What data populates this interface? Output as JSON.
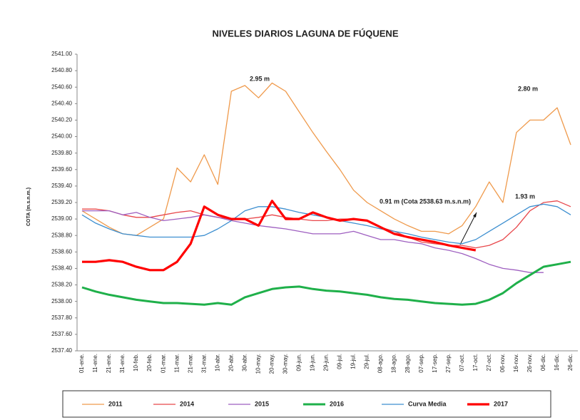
{
  "chart_data": {
    "type": "line",
    "title": "NIVELES DIARIOS LAGUNA DE FÚQUENE",
    "y_label": "COTA (m.s.n.m.)",
    "categories": [
      "01-ene.",
      "11-ene.",
      "21-ene.",
      "31-ene.",
      "10-feb.",
      "20-feb.",
      "01-mar.",
      "11-mar.",
      "21-mar.",
      "31-mar.",
      "10-abr.",
      "20-abr.",
      "30-abr.",
      "10-may.",
      "20-may.",
      "30-may.",
      "09-jun.",
      "19-jun.",
      "29-jun.",
      "09-jul.",
      "19-jul.",
      "29-jul.",
      "08-ago.",
      "18-ago.",
      "28-ago.",
      "07-sep.",
      "17-sep.",
      "27-sep.",
      "07-oct.",
      "17-oct.",
      "27-oct.",
      "06-nov.",
      "16-nov.",
      "26-nov.",
      "06-dic.",
      "16-dic.",
      "26-dic."
    ],
    "ylim": [
      2537.4,
      2541.0
    ],
    "yticks": [
      {
        "value": 2537.4,
        "label": "2537.40"
      },
      {
        "value": 2537.6,
        "label": "2537.60"
      },
      {
        "value": 2537.8,
        "label": "2537.80"
      },
      {
        "value": 2538.0,
        "label": "2538.00"
      },
      {
        "value": 2538.2,
        "label": "2538.20"
      },
      {
        "value": 2538.4,
        "label": "2538.40"
      },
      {
        "value": 2538.6,
        "label": "2538.60"
      },
      {
        "value": 2538.8,
        "label": "2538.80"
      },
      {
        "value": 2539.0,
        "label": "2539.00"
      },
      {
        "value": 2539.2,
        "label": "2539.20"
      },
      {
        "value": 2539.4,
        "label": "2539.40"
      },
      {
        "value": 2539.6,
        "label": "2539.60"
      },
      {
        "value": 2539.8,
        "label": "2539.80"
      },
      {
        "value": 2540.0,
        "label": "2540.00"
      },
      {
        "value": 2540.2,
        "label": "2540.20"
      },
      {
        "value": 2540.4,
        "label": "2540.40"
      },
      {
        "value": 2540.6,
        "label": "2540.60"
      },
      {
        "value": 2540.8,
        "label": "2540.80"
      },
      {
        "value": 2541.0,
        "label": "2541.00"
      }
    ],
    "grid": false,
    "legend": "bottom",
    "series": [
      {
        "name": "2011",
        "color": "#ef9a4c",
        "line_width": 1.3,
        "values": [
          2539.1,
          2539.0,
          2538.9,
          2538.82,
          2538.8,
          2538.9,
          2539.0,
          2539.62,
          2539.45,
          2539.78,
          2539.42,
          2540.55,
          2540.62,
          2540.47,
          2540.65,
          2540.55,
          2540.3,
          2540.05,
          2539.82,
          2539.6,
          2539.35,
          2539.2,
          2539.1,
          2539.0,
          2538.92,
          2538.85,
          2538.85,
          2538.82,
          2538.92,
          2539.15,
          2539.45,
          2539.2,
          2540.05,
          2540.2,
          2540.2,
          2540.35,
          2539.9
        ]
      },
      {
        "name": "2014",
        "color": "#e8474b",
        "line_width": 1.3,
        "values": [
          2539.12,
          2539.12,
          2539.1,
          2539.05,
          2539.02,
          2539.02,
          2539.05,
          2539.08,
          2539.1,
          2539.05,
          2539.02,
          2539.0,
          2539.0,
          2539.02,
          2539.05,
          2539.02,
          2539.0,
          2538.98,
          2538.98,
          2539.0,
          2539.0,
          2538.98,
          2538.9,
          2538.85,
          2538.78,
          2538.72,
          2538.7,
          2538.68,
          2538.68,
          2538.65,
          2538.68,
          2538.75,
          2538.9,
          2539.1,
          2539.2,
          2539.22,
          2539.15
        ]
      },
      {
        "name": "2015",
        "color": "#9e5fc0",
        "line_width": 1.3,
        "values": [
          2539.1,
          2539.1,
          2539.1,
          2539.05,
          2539.08,
          2539.02,
          2538.98,
          2539.0,
          2539.02,
          2539.05,
          2539.02,
          2538.98,
          2538.95,
          2538.92,
          2538.9,
          2538.88,
          2538.85,
          2538.82,
          2538.82,
          2538.82,
          2538.85,
          2538.8,
          2538.75,
          2538.75,
          2538.72,
          2538.7,
          2538.65,
          2538.62,
          2538.58,
          2538.52,
          2538.45,
          2538.4,
          2538.38,
          2538.35,
          2538.35,
          null,
          null
        ]
      },
      {
        "name": "2016",
        "color": "#1fb04a",
        "line_width": 3,
        "values": [
          2538.17,
          2538.12,
          2538.08,
          2538.05,
          2538.02,
          2538.0,
          2537.98,
          2537.98,
          2537.97,
          2537.96,
          2537.98,
          2537.96,
          2538.05,
          2538.1,
          2538.15,
          2538.17,
          2538.18,
          2538.15,
          2538.13,
          2538.12,
          2538.1,
          2538.08,
          2538.05,
          2538.03,
          2538.02,
          2538.0,
          2537.98,
          2537.97,
          2537.96,
          2537.97,
          2538.02,
          2538.1,
          2538.22,
          2538.32,
          2538.42,
          2538.45,
          2538.48
        ]
      },
      {
        "name": "Curva Media",
        "color": "#3d8fd0",
        "line_width": 1.3,
        "values": [
          2539.05,
          2538.95,
          2538.88,
          2538.82,
          2538.8,
          2538.78,
          2538.78,
          2538.78,
          2538.78,
          2538.8,
          2538.88,
          2538.98,
          2539.1,
          2539.15,
          2539.15,
          2539.12,
          2539.08,
          2539.05,
          2539.02,
          2538.98,
          2538.95,
          2538.92,
          2538.88,
          2538.85,
          2538.82,
          2538.78,
          2538.75,
          2538.72,
          2538.7,
          2538.75,
          2538.85,
          2538.95,
          2539.05,
          2539.15,
          2539.18,
          2539.15,
          2539.05
        ]
      },
      {
        "name": "2017",
        "color": "#ff0000",
        "line_width": 3.2,
        "values": [
          2538.48,
          2538.48,
          2538.5,
          2538.48,
          2538.42,
          2538.38,
          2538.38,
          2538.48,
          2538.7,
          2539.15,
          2539.05,
          2539.0,
          2539.0,
          2538.92,
          2539.22,
          2539.0,
          2539.0,
          2539.08,
          2539.02,
          2538.98,
          2539.0,
          2538.98,
          2538.9,
          2538.82,
          2538.78,
          2538.75,
          2538.72,
          2538.68,
          2538.65,
          2538.62,
          null,
          null,
          null,
          null,
          null,
          null,
          null
        ]
      }
    ],
    "annotations": [
      "2.95 m",
      "2.80 m",
      "1.93 m",
      "0.91 m (Cota 2538.63 m.s.n.m)"
    ]
  }
}
